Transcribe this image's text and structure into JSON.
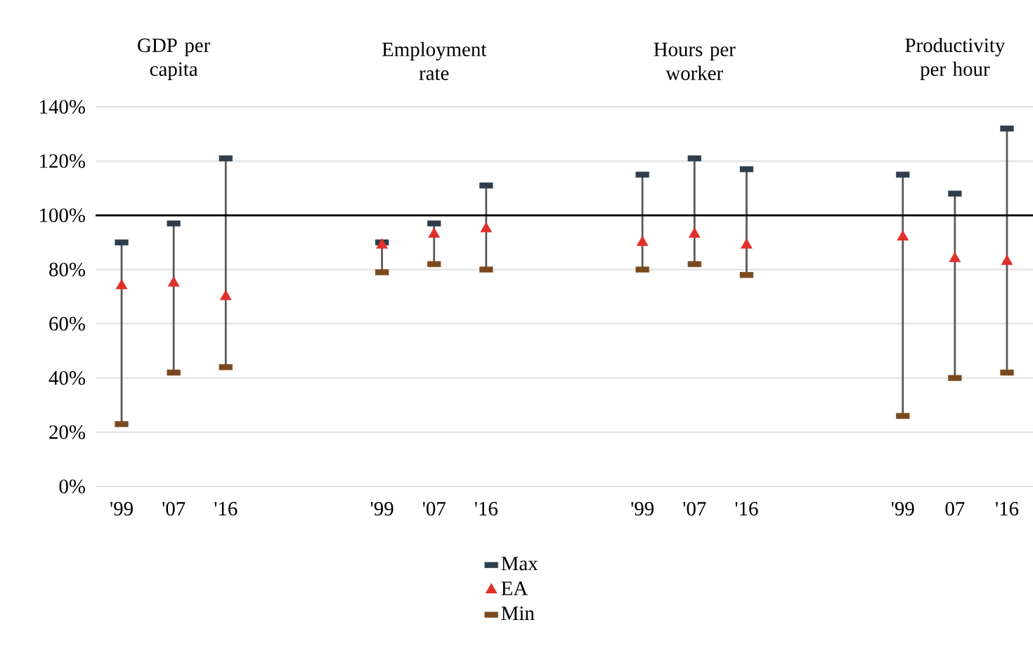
{
  "chart_data": {
    "type": "scatter",
    "annotations": [
      "GDP per capita",
      "Employment rate",
      "Hours per worker",
      "Productivity per hour"
    ],
    "categories": [
      "'99",
      "'07",
      "'16",
      null,
      null,
      "'99",
      "'07",
      "'16",
      null,
      null,
      "'99",
      "'07",
      "'16",
      null,
      null,
      "'99",
      "07",
      "'16"
    ],
    "series": [
      {
        "name": "Max",
        "color": "#2f3e4c",
        "marker": "square",
        "values": [
          90,
          97,
          121,
          null,
          null,
          90,
          97,
          111,
          null,
          null,
          115,
          121,
          117,
          null,
          null,
          115,
          108,
          132
        ]
      },
      {
        "name": "EA",
        "color": "#e0302a",
        "marker": "triangle",
        "values": [
          74,
          75,
          70,
          null,
          null,
          89,
          93,
          95,
          null,
          null,
          90,
          93,
          89,
          null,
          null,
          92,
          84,
          83
        ]
      },
      {
        "name": "Min",
        "color": "#7a4a1e",
        "marker": "square",
        "values": [
          23,
          42,
          44,
          null,
          null,
          79,
          82,
          80,
          null,
          null,
          80,
          82,
          78,
          null,
          null,
          26,
          40,
          42
        ]
      }
    ],
    "ylim": [
      0,
      140
    ],
    "yticks": [
      {
        "value": 0,
        "label": "0%"
      },
      {
        "value": 20,
        "label": "20%"
      },
      {
        "value": 40,
        "label": "40%"
      },
      {
        "value": 60,
        "label": "60%"
      },
      {
        "value": 80,
        "label": "80%"
      },
      {
        "value": 100,
        "label": "100%"
      },
      {
        "value": 120,
        "label": "120%"
      },
      {
        "value": 140,
        "label": "140%"
      }
    ],
    "ref_lines": [
      {
        "axis": "y",
        "value": 100,
        "color": "#000000"
      }
    ],
    "grid": "y",
    "legend": "bottom"
  }
}
